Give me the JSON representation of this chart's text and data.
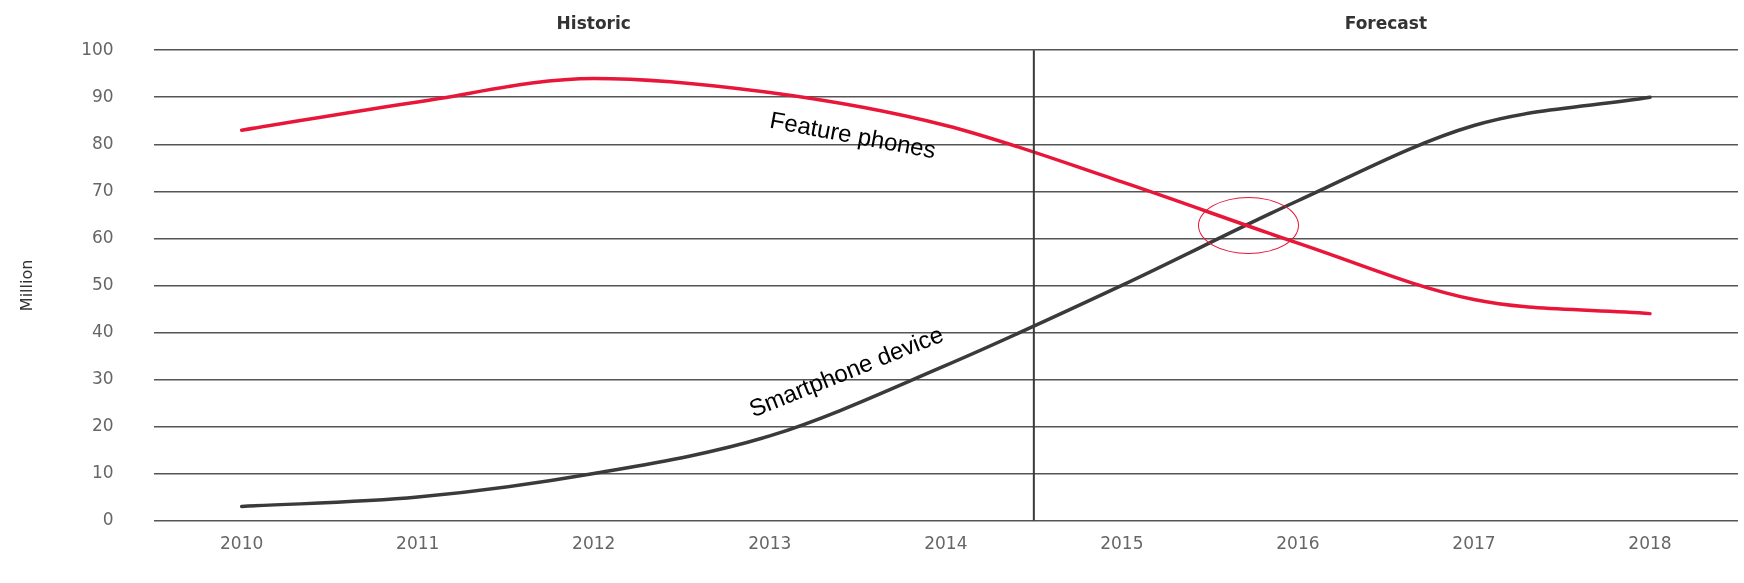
{
  "chart_data": {
    "type": "line",
    "ylabel": "Million",
    "x": [
      2010,
      2011,
      2012,
      2013,
      2014,
      2015,
      2016,
      2017,
      2018
    ],
    "xlim": [
      2009.5,
      2018.5
    ],
    "xticks": [
      2010,
      2011,
      2012,
      2013,
      2014,
      2015,
      2016,
      2017,
      2018
    ],
    "ylim": [
      0,
      100
    ],
    "yticks": [
      0,
      10,
      20,
      30,
      40,
      50,
      60,
      70,
      80,
      90,
      100
    ],
    "series": [
      {
        "name": "Feature phones",
        "color": "#e8173a",
        "values": [
          83,
          89,
          94,
          91,
          84,
          72,
          59,
          47,
          44
        ]
      },
      {
        "name": "Smartphone device",
        "color": "#3a3a3a",
        "values": [
          3,
          5,
          10,
          18,
          33,
          50,
          68,
          84,
          90
        ]
      }
    ],
    "ref_lines": [
      {
        "axis": "x",
        "value": 2014.5,
        "color": "#3a3a3a"
      }
    ],
    "annotations": [
      "Historic",
      "Forecast"
    ],
    "grid": "y",
    "legend": false,
    "marker": "none",
    "line_style": "solid"
  }
}
